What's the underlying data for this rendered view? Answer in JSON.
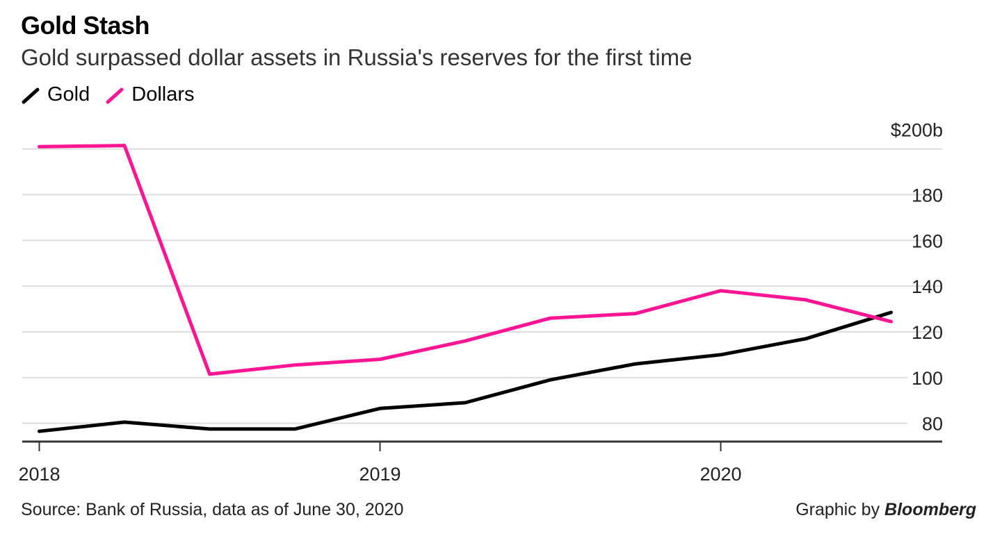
{
  "chart_data": {
    "type": "line",
    "title": "Gold Stash",
    "subtitle": "Gold surpassed dollar assets in Russia's reserves for the first time",
    "source": "Source: Bank of Russia, data as of June 30, 2020",
    "credit_prefix": "Graphic by ",
    "credit_brand": "Bloomberg",
    "x": [
      2018.0,
      2018.25,
      2018.5,
      2018.75,
      2019.0,
      2019.25,
      2019.5,
      2019.75,
      2020.0,
      2020.25,
      2020.5
    ],
    "series": [
      {
        "name": "Gold",
        "color": "#000000",
        "values": [
          76.5,
          80.5,
          77.5,
          77.5,
          86.5,
          89,
          99,
          106,
          110,
          117,
          128.5
        ]
      },
      {
        "name": "Dollars",
        "color": "#ff1493",
        "values": [
          201,
          201.5,
          101.5,
          105.5,
          108,
          116,
          126,
          128,
          138,
          134,
          124.5
        ]
      }
    ],
    "x_ticks": [
      {
        "value": 2018,
        "label": "2018"
      },
      {
        "value": 2019,
        "label": "2019"
      },
      {
        "value": 2020,
        "label": "2020"
      }
    ],
    "y_ticks": [
      {
        "value": 200,
        "label": "$200b"
      },
      {
        "value": 180,
        "label": "180"
      },
      {
        "value": 160,
        "label": "160"
      },
      {
        "value": 140,
        "label": "140"
      },
      {
        "value": 120,
        "label": "120"
      },
      {
        "value": 100,
        "label": "100"
      },
      {
        "value": 80,
        "label": "80"
      }
    ],
    "xlim": [
      2017.95,
      2020.65
    ],
    "ylim": [
      72,
      202
    ],
    "grid_values": [
      200,
      180,
      160,
      140,
      120,
      100,
      80
    ],
    "legend_position": "top-left",
    "axis_color": "#333333",
    "grid_color": "#dddddd"
  }
}
